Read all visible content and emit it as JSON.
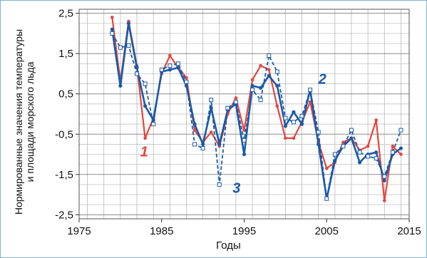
{
  "colors": {
    "series1": "#e8453c",
    "series2": "#1a5aa8",
    "series3": "#1a5aa8",
    "grid": "#b8b8b8",
    "frame": "#7fb3d5"
  },
  "chart_data": {
    "type": "line",
    "title": "",
    "xlabel": "Годы",
    "ylabel_line1": "Нормированные значения температуры",
    "ylabel_line2": "и площади морского льда",
    "xlim": [
      1975,
      2015
    ],
    "ylim": [
      -2.6,
      2.6
    ],
    "xticks": [
      1975,
      1985,
      1995,
      2005,
      2015
    ],
    "yticks": [
      2.5,
      1.5,
      0.5,
      -0.5,
      -1.5,
      -2.5
    ],
    "ytick_labels": [
      "2,5",
      "1,5",
      "0,5",
      "-0,5",
      "-1,5",
      "-2,5"
    ],
    "grid": true,
    "series": [
      {
        "name": "1",
        "style": "solid",
        "x": [
          1979,
          1980,
          1981,
          1982,
          1983,
          1984,
          1985,
          1986,
          1987,
          1988,
          1989,
          1990,
          1991,
          1992,
          1993,
          1994,
          1995,
          1996,
          1997,
          1998,
          1999,
          2000,
          2001,
          2002,
          2003,
          2004,
          2005,
          2006,
          2007,
          2008,
          2009,
          2010,
          2011,
          2012,
          2013,
          2014
        ],
        "y": [
          2.4,
          0.8,
          2.3,
          1.2,
          -0.6,
          -0.1,
          1.0,
          1.45,
          1.15,
          0.9,
          -0.4,
          -0.7,
          -0.45,
          -0.8,
          0.0,
          0.4,
          -0.4,
          0.85,
          1.2,
          1.1,
          0.2,
          -0.6,
          -0.6,
          -0.2,
          0.3,
          -0.7,
          -1.35,
          -1.2,
          -0.7,
          -0.6,
          -0.9,
          -0.8,
          -0.15,
          -2.15,
          -0.8,
          -1.0
        ]
      },
      {
        "name": "2",
        "style": "solid",
        "x": [
          1979,
          1980,
          1981,
          1982,
          1983,
          1984,
          1985,
          1986,
          1987,
          1988,
          1989,
          1990,
          1991,
          1992,
          1993,
          1994,
          1995,
          1996,
          1997,
          1998,
          1999,
          2000,
          2001,
          2002,
          2003,
          2004,
          2005,
          2006,
          2007,
          2008,
          2009,
          2010,
          2011,
          2012,
          2013,
          2014
        ],
        "y": [
          2.1,
          0.7,
          2.25,
          1.15,
          0.2,
          -0.15,
          1.05,
          1.1,
          1.15,
          0.7,
          -0.25,
          -0.75,
          0.15,
          -0.75,
          0.1,
          0.25,
          -1.0,
          0.7,
          0.65,
          0.95,
          0.7,
          -0.3,
          0.05,
          -0.25,
          0.6,
          -0.75,
          -2.1,
          -1.15,
          -0.8,
          -0.6,
          -1.2,
          -1.0,
          -0.95,
          -1.65,
          -1.0,
          -0.85
        ]
      },
      {
        "name": "3",
        "style": "dashed",
        "x": [
          1979,
          1980,
          1981,
          1982,
          1983,
          1984,
          1985,
          1986,
          1987,
          1988,
          1989,
          1990,
          1991,
          1992,
          1993,
          1994,
          1995,
          1996,
          1997,
          1998,
          1999,
          2000,
          2001,
          2002,
          2003,
          2004,
          2005,
          2006,
          2007,
          2008,
          2009,
          2010,
          2011,
          2012,
          2013,
          2014
        ],
        "y": [
          2.0,
          1.65,
          1.7,
          1.0,
          0.75,
          -0.25,
          1.1,
          1.2,
          1.25,
          0.8,
          -0.75,
          -0.85,
          0.35,
          -1.75,
          0.15,
          0.3,
          -0.65,
          0.6,
          0.35,
          1.45,
          1.05,
          -0.1,
          -0.2,
          -0.05,
          0.6,
          -0.45,
          -2.1,
          -1.0,
          -0.8,
          -0.4,
          -0.95,
          -1.05,
          -1.1,
          -1.55,
          -0.95,
          -0.4
        ]
      }
    ]
  }
}
